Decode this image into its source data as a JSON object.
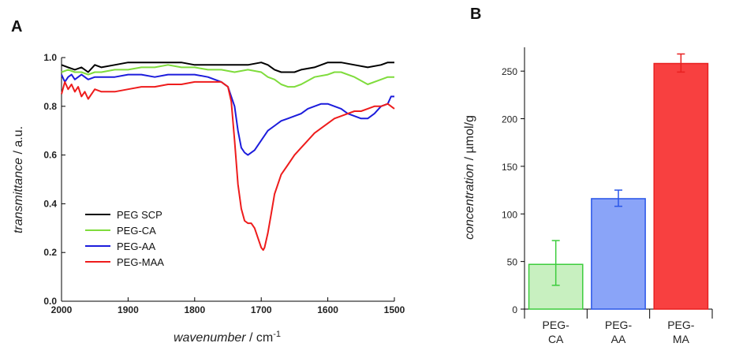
{
  "chart_data": [
    {
      "panel": "A",
      "type": "line",
      "xlabel_main": "wavenumber",
      "xlabel_unit": " / cm",
      "xlabel_sup": "-1",
      "ylabel_main": "transmittance",
      "ylabel_unit": " / a.u.",
      "xlim": [
        2000,
        1500
      ],
      "ylim": [
        0.0,
        1.0
      ],
      "xticks": [
        "2000",
        "1900",
        "1800",
        "1700",
        "1600",
        "1500"
      ],
      "yticks": [
        "0.0",
        "0.2",
        "0.4",
        "0.6",
        "0.8",
        "1.0"
      ],
      "legend_position": "bottom-left",
      "series": [
        {
          "name": "PEG SCP",
          "color": "#000000",
          "x": [
            2000,
            1990,
            1980,
            1970,
            1960,
            1950,
            1940,
            1920,
            1900,
            1880,
            1860,
            1840,
            1820,
            1800,
            1780,
            1760,
            1740,
            1720,
            1700,
            1690,
            1680,
            1670,
            1660,
            1650,
            1640,
            1620,
            1600,
            1580,
            1560,
            1540,
            1520,
            1510,
            1500
          ],
          "y": [
            0.97,
            0.96,
            0.95,
            0.96,
            0.94,
            0.97,
            0.96,
            0.97,
            0.98,
            0.98,
            0.98,
            0.98,
            0.98,
            0.97,
            0.97,
            0.97,
            0.97,
            0.97,
            0.98,
            0.97,
            0.95,
            0.94,
            0.94,
            0.94,
            0.95,
            0.96,
            0.98,
            0.98,
            0.97,
            0.96,
            0.97,
            0.98,
            0.98
          ]
        },
        {
          "name": "PEG-CA",
          "color": "#7fdc3c",
          "x": [
            2000,
            1990,
            1980,
            1970,
            1960,
            1950,
            1940,
            1920,
            1900,
            1880,
            1860,
            1840,
            1820,
            1800,
            1780,
            1760,
            1740,
            1720,
            1700,
            1690,
            1680,
            1670,
            1660,
            1650,
            1640,
            1620,
            1600,
            1590,
            1580,
            1560,
            1540,
            1520,
            1510,
            1500
          ],
          "y": [
            0.94,
            0.95,
            0.94,
            0.94,
            0.93,
            0.94,
            0.94,
            0.95,
            0.95,
            0.96,
            0.96,
            0.97,
            0.96,
            0.96,
            0.95,
            0.95,
            0.94,
            0.95,
            0.94,
            0.92,
            0.91,
            0.89,
            0.88,
            0.88,
            0.89,
            0.92,
            0.93,
            0.94,
            0.94,
            0.92,
            0.89,
            0.91,
            0.92,
            0.92
          ]
        },
        {
          "name": "PEG-AA",
          "color": "#1c1cdc",
          "x": [
            2000,
            1995,
            1990,
            1985,
            1980,
            1970,
            1960,
            1950,
            1940,
            1920,
            1900,
            1880,
            1860,
            1840,
            1820,
            1800,
            1780,
            1760,
            1750,
            1740,
            1735,
            1730,
            1725,
            1720,
            1710,
            1700,
            1690,
            1680,
            1670,
            1660,
            1650,
            1640,
            1630,
            1620,
            1610,
            1600,
            1590,
            1580,
            1570,
            1560,
            1550,
            1540,
            1530,
            1520,
            1510,
            1505,
            1500
          ],
          "y": [
            0.93,
            0.9,
            0.92,
            0.93,
            0.91,
            0.93,
            0.91,
            0.92,
            0.92,
            0.92,
            0.93,
            0.93,
            0.92,
            0.93,
            0.93,
            0.93,
            0.92,
            0.9,
            0.88,
            0.8,
            0.7,
            0.63,
            0.61,
            0.6,
            0.62,
            0.66,
            0.7,
            0.72,
            0.74,
            0.75,
            0.76,
            0.77,
            0.79,
            0.8,
            0.81,
            0.81,
            0.8,
            0.79,
            0.77,
            0.76,
            0.75,
            0.75,
            0.77,
            0.8,
            0.81,
            0.84,
            0.84
          ]
        },
        {
          "name": "PEG-MAA",
          "color": "#ee1c1c",
          "x": [
            2000,
            1995,
            1990,
            1985,
            1980,
            1975,
            1970,
            1965,
            1960,
            1950,
            1940,
            1920,
            1900,
            1880,
            1860,
            1840,
            1820,
            1800,
            1790,
            1780,
            1770,
            1760,
            1750,
            1745,
            1740,
            1735,
            1730,
            1725,
            1720,
            1715,
            1710,
            1705,
            1700,
            1697,
            1695,
            1690,
            1685,
            1680,
            1675,
            1670,
            1660,
            1650,
            1640,
            1630,
            1620,
            1610,
            1600,
            1590,
            1580,
            1570,
            1560,
            1550,
            1540,
            1530,
            1520,
            1510,
            1505,
            1500
          ],
          "y": [
            0.85,
            0.9,
            0.87,
            0.89,
            0.86,
            0.88,
            0.84,
            0.86,
            0.83,
            0.87,
            0.86,
            0.86,
            0.87,
            0.88,
            0.88,
            0.89,
            0.89,
            0.9,
            0.9,
            0.9,
            0.9,
            0.9,
            0.88,
            0.82,
            0.66,
            0.48,
            0.38,
            0.33,
            0.32,
            0.32,
            0.3,
            0.26,
            0.22,
            0.21,
            0.22,
            0.28,
            0.36,
            0.44,
            0.48,
            0.52,
            0.56,
            0.6,
            0.63,
            0.66,
            0.69,
            0.71,
            0.73,
            0.75,
            0.76,
            0.77,
            0.78,
            0.78,
            0.79,
            0.8,
            0.8,
            0.81,
            0.8,
            0.79
          ]
        }
      ]
    },
    {
      "panel": "B",
      "type": "bar",
      "ylabel_main": "concentration",
      "ylabel_unit": "  / µmol/g",
      "ylim": [
        0,
        275
      ],
      "yticks": [
        "0",
        "50",
        "100",
        "150",
        "200",
        "250"
      ],
      "categories": [
        [
          "PEG-",
          "CA"
        ],
        [
          "PEG-",
          "AA"
        ],
        [
          "PEG-",
          "MA"
        ]
      ],
      "values": [
        47,
        116,
        258
      ],
      "error_low": [
        25,
        108,
        249
      ],
      "error_high": [
        72,
        125,
        268
      ],
      "fill_colors": [
        "#c8f0c0",
        "#8aa4f8",
        "#f84040"
      ],
      "stroke_colors": [
        "#3ccc3c",
        "#2a56e8",
        "#e82020"
      ]
    }
  ]
}
